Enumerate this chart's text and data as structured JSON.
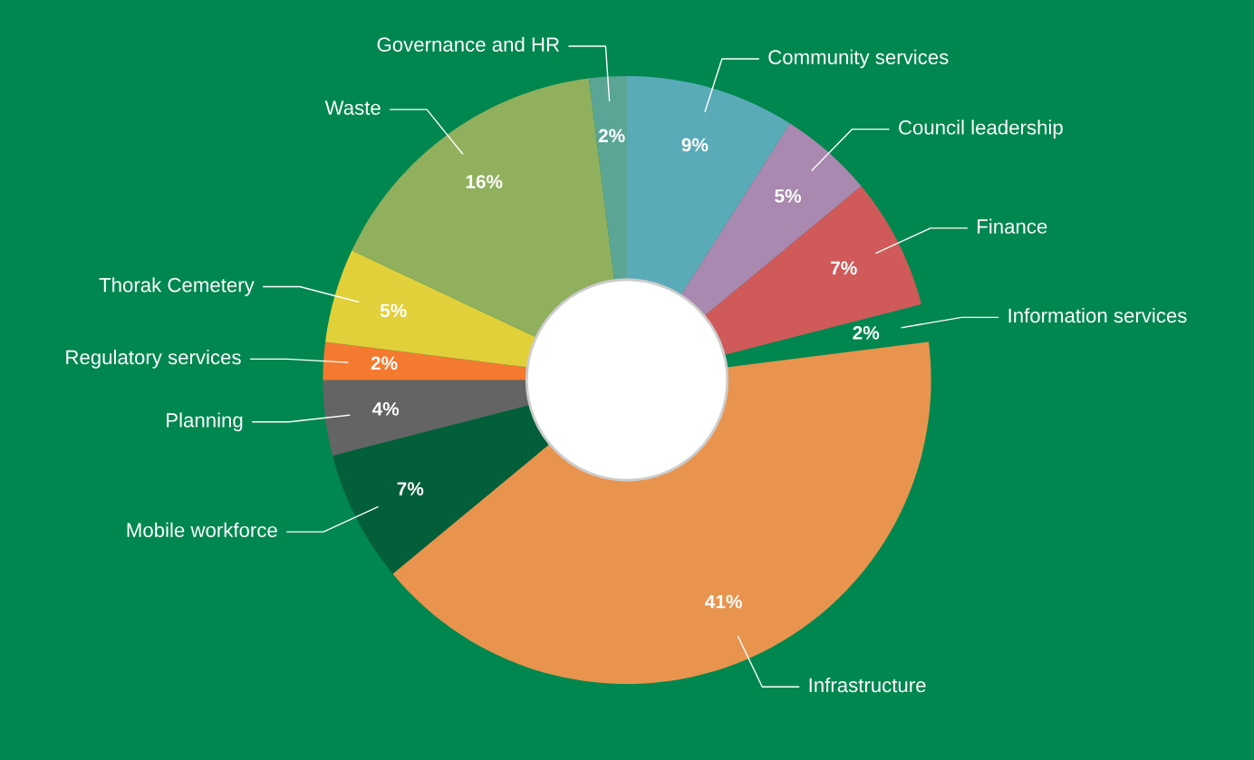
{
  "chart_data": {
    "type": "donut",
    "categories": [
      "Community services",
      "Council leadership",
      "Finance",
      "Information services",
      "Infrastructure",
      "Mobile workforce",
      "Planning",
      "Regulatory services",
      "Thorak Cemetery",
      "Waste",
      "Governance and HR"
    ],
    "values": [
      9,
      5,
      7,
      2,
      41,
      7,
      4,
      2,
      5,
      16,
      2
    ],
    "value_labels": [
      "9%",
      "5%",
      "7%",
      "2%",
      "41%",
      "7%",
      "4%",
      "2%",
      "5%",
      "16%",
      "2%"
    ],
    "colors": [
      "#5aabb8",
      "#a989b0",
      "#d05a5a",
      "#00874f",
      "#e8944e",
      "#035e3a",
      "#646464",
      "#f47a30",
      "#e1d03a",
      "#90b05e",
      "#5aa596"
    ],
    "legend": false
  }
}
